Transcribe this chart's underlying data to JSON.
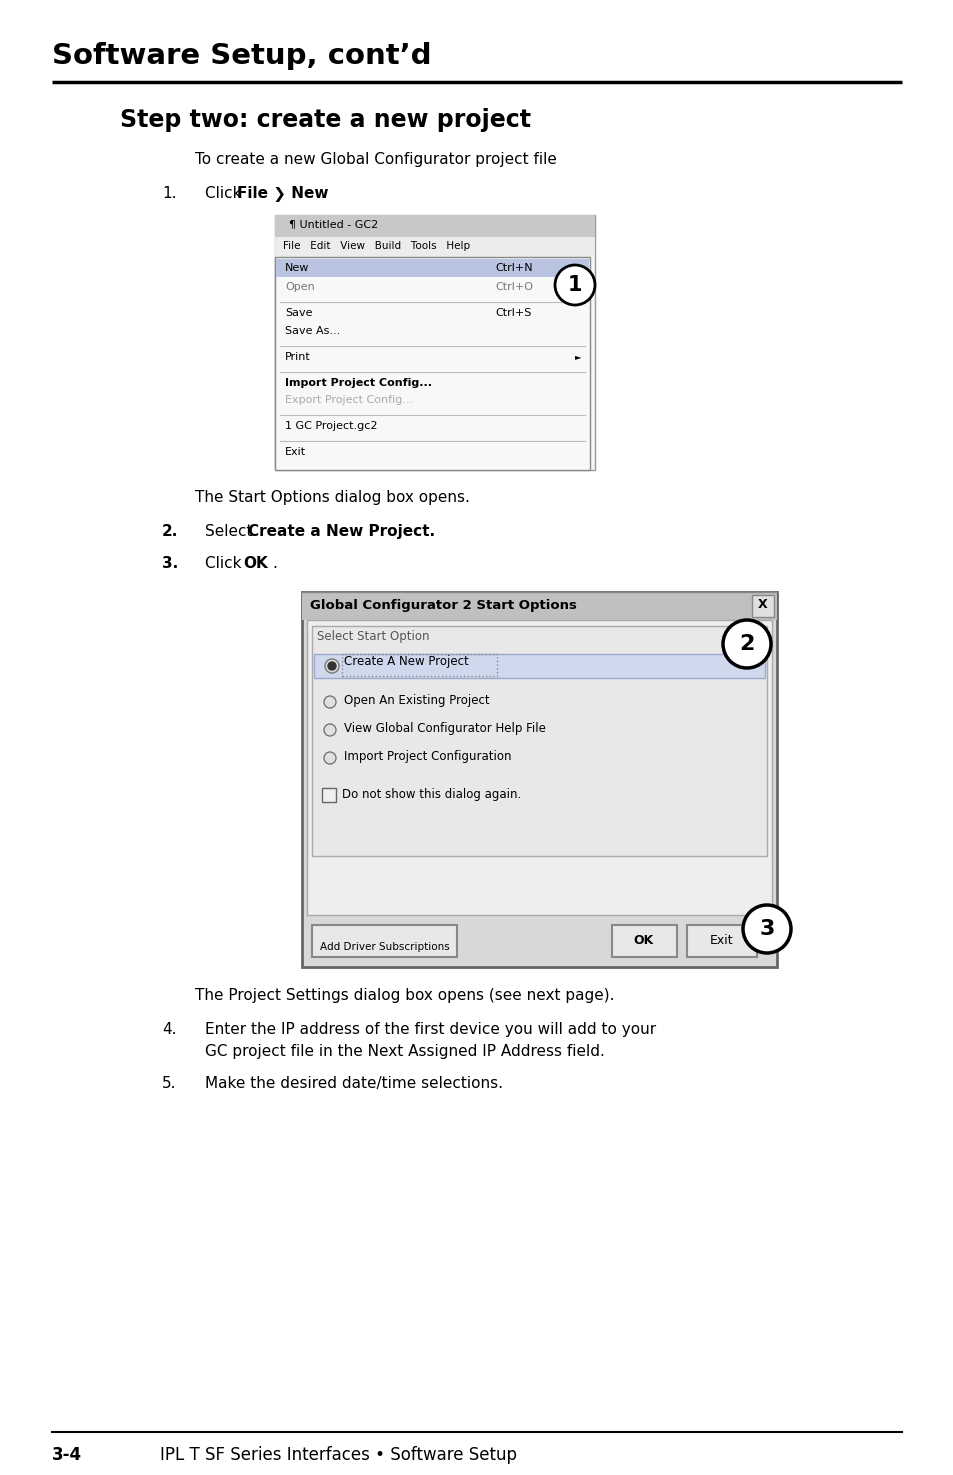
{
  "page_bg": "#ffffff",
  "title": "Software Setup, cont’d",
  "section_heading": "Step two: create a new project",
  "intro_text": "To create a new Global Configurator project file",
  "step1_num": "1.",
  "step1_text": "Click ",
  "step1_bold": "File ❯ New",
  "step1_period": ".",
  "after_ss1": "The Start Options dialog box opens.",
  "step2_num": "2.",
  "step2_text": "Select ",
  "step2_bold": "Create a New Project.",
  "step3_num": "3.",
  "step3_text": "Click ",
  "step3_bold": "OK",
  "step3_period": ".",
  "after_ss2": "The Project Settings dialog box opens (see next page).",
  "step4_num": "4.",
  "step4_line1": "Enter the IP address of the first device you will add to your",
  "step4_line2": "GC project file in the Next Assigned IP Address field.",
  "step5_num": "5.",
  "step5_text": "Make the desired date/time selections.",
  "footer_num": "3-4",
  "footer_text": "IPL T SF Series Interfaces • Software Setup",
  "ss1_title": "¶ Untitled - GC2",
  "ss1_menu": "File   Edit   View   Build   Tools   Help",
  "ss1_new": "New",
  "ss1_ctrl_n": "Ctrl+N",
  "ss1_open": "Open",
  "ss1_ctrl_o": "Ctrl+O",
  "ss1_save": "Save",
  "ss1_ctrl_s": "Ctrl+S",
  "ss1_saveas": "Save As...",
  "ss1_print": "Print",
  "ss1_import": "Import Project Config...",
  "ss1_export": "Export Project Config...",
  "ss1_gc": "1 GC Project.gc2",
  "ss1_exit": "Exit",
  "ss2_title": "Global Configurator 2 Start Options",
  "ss2_label": "Select Start Option",
  "ss2_r1": "Create A New Project",
  "ss2_r2": "Open An Existing Project",
  "ss2_r3": "View Global Configurator Help File",
  "ss2_r4": "Import Project Configuration",
  "ss2_check": "Do not show this dialog again.",
  "ss2_add": "Add Driver Subscriptions",
  "ss2_ok": "OK",
  "ss2_exit": "Exit"
}
